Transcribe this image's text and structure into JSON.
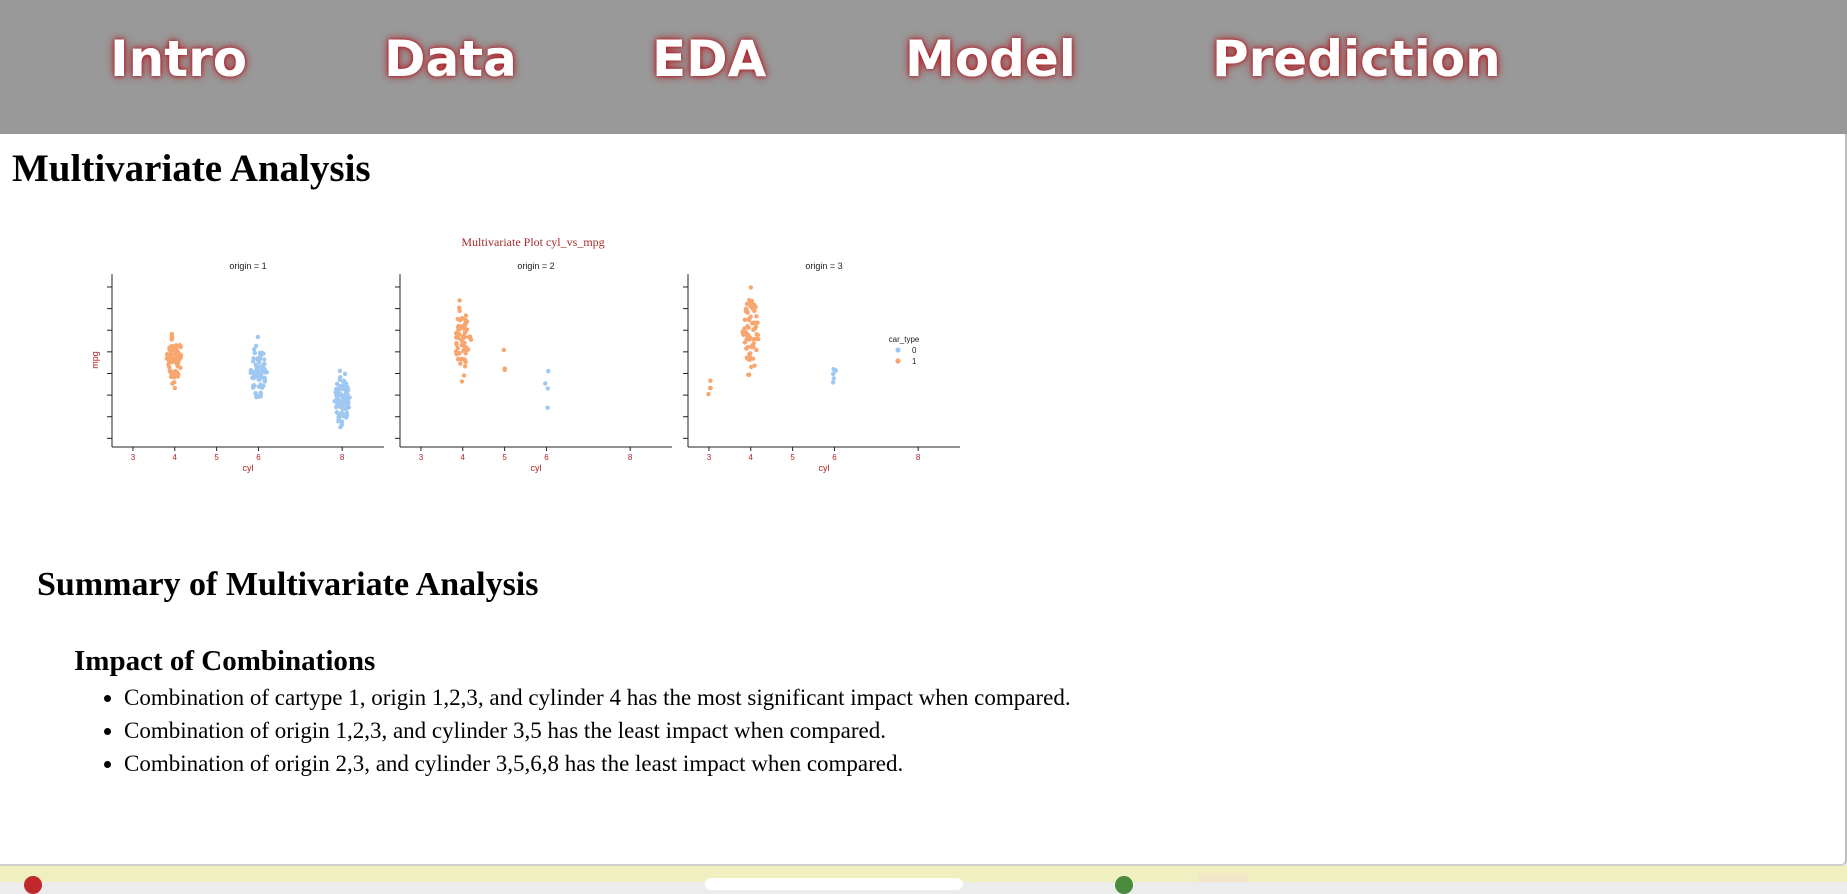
{
  "nav": {
    "items": [
      "Intro",
      "Data",
      "EDA",
      "Model",
      "Prediction"
    ]
  },
  "page": {
    "title": "Multivariate Analysis",
    "summary_heading": "Summary of Multivariate Analysis",
    "impact_heading": "Impact of Combinations",
    "findings": [
      "Combination of cartype 1, origin 1,2,3, and cylinder 4 has the most significant impact when compared.",
      "Combination of origin 1,2,3, and cylinder 3,5 has the least impact when compared.",
      "Combination of origin 2,3, and cylinder 3,5,6,8 has the least impact when compared."
    ]
  },
  "chart_data": {
    "type": "scatter",
    "title": "Multivariate Plot cyl_vs_mpg",
    "xlabel": "cyl",
    "ylabel": "mpg",
    "x_ticks": [
      3,
      4,
      5,
      6,
      8
    ],
    "ylim": [
      8,
      48
    ],
    "y_ticks": [
      10,
      15,
      20,
      25,
      30,
      35,
      40,
      45
    ],
    "grid": false,
    "legend": {
      "title": "car_type",
      "placement": "right",
      "entries": [
        "0",
        "1"
      ]
    },
    "colors": {
      "0": "#9fc8f0",
      "1": "#f6a66e",
      "title": "#a52a2a",
      "axis_label": "#b22222"
    },
    "facets": [
      {
        "label": "origin = 1",
        "groups": [
          {
            "cyl": 4,
            "car_type": 1,
            "mpg_range": [
              21,
              36
            ],
            "count": 72
          },
          {
            "cyl": 6,
            "car_type": 0,
            "mpg_range": [
              17,
              34
            ],
            "count": 74
          },
          {
            "cyl": 8,
            "car_type": 0,
            "mpg_range": [
              11,
              27
            ],
            "count": 103
          }
        ]
      },
      {
        "label": "origin = 2",
        "groups": [
          {
            "cyl": 4,
            "car_type": 1,
            "mpg_range": [
              20,
              45
            ],
            "count": 63
          },
          {
            "cyl": 5,
            "car_type": 1,
            "mpg_range": [
              21,
              36
            ],
            "count": 3
          },
          {
            "cyl": 6,
            "car_type": 0,
            "mpg_range": [
              16,
              30
            ],
            "count": 4
          }
        ]
      },
      {
        "label": "origin = 3",
        "groups": [
          {
            "cyl": 3,
            "car_type": 1,
            "mpg_range": [
              19,
              24
            ],
            "count": 4
          },
          {
            "cyl": 4,
            "car_type": 1,
            "mpg_range": [
              22,
              47
            ],
            "count": 69
          },
          {
            "cyl": 6,
            "car_type": 0,
            "mpg_range": [
              19,
              32
            ],
            "count": 6
          }
        ]
      }
    ]
  }
}
